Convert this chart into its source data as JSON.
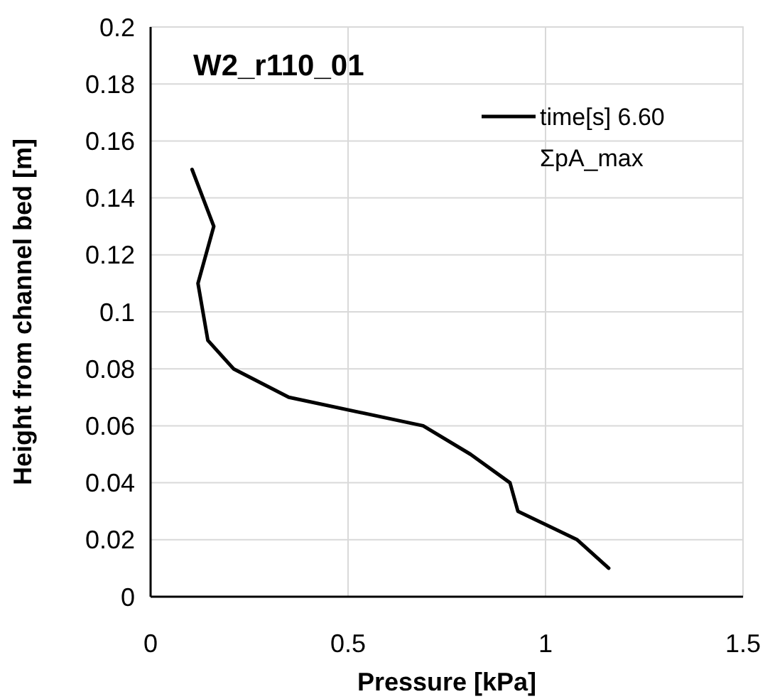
{
  "chart_data": {
    "type": "line",
    "title": "W2_r110_01",
    "xlabel": "Pressure [kPa]",
    "ylabel": "Height from channel bed [m]",
    "xlim": [
      0,
      1.5
    ],
    "xticks": [
      0,
      {
        "value": 0.5,
        "label": "0.5"
      },
      1,
      {
        "value": 1.5,
        "label": "1.5"
      }
    ],
    "ylim": [
      0,
      0.2
    ],
    "yticks": [
      0,
      {
        "value": 0.02,
        "label": "0.02"
      },
      {
        "value": 0.04,
        "label": "0.04"
      },
      {
        "value": 0.06,
        "label": "0.06"
      },
      {
        "value": 0.08,
        "label": "0.08"
      },
      {
        "value": 0.1,
        "label": "0.1"
      },
      {
        "value": 0.12,
        "label": "0.12"
      },
      {
        "value": 0.14,
        "label": "0.14"
      },
      {
        "value": 0.16,
        "label": "0.16"
      },
      {
        "value": 0.18,
        "label": "0.18"
      },
      {
        "value": 0.2,
        "label": "0.2"
      }
    ],
    "grid": true,
    "legend": "top right",
    "marker": "none",
    "line_style": "solid",
    "series": [
      {
        "name": "time[s] 6.60 ΣpA_max",
        "color": "#000000",
        "x": [
          0.105,
          0.16,
          0.12,
          0.145,
          0.21,
          0.35,
          0.69,
          0.81,
          0.91,
          0.93,
          1.08,
          1.16
        ],
        "values": [
          0.15,
          0.13,
          0.11,
          0.09,
          0.08,
          0.07,
          0.06,
          0.05,
          0.04,
          0.03,
          0.02,
          0.01
        ]
      }
    ]
  }
}
